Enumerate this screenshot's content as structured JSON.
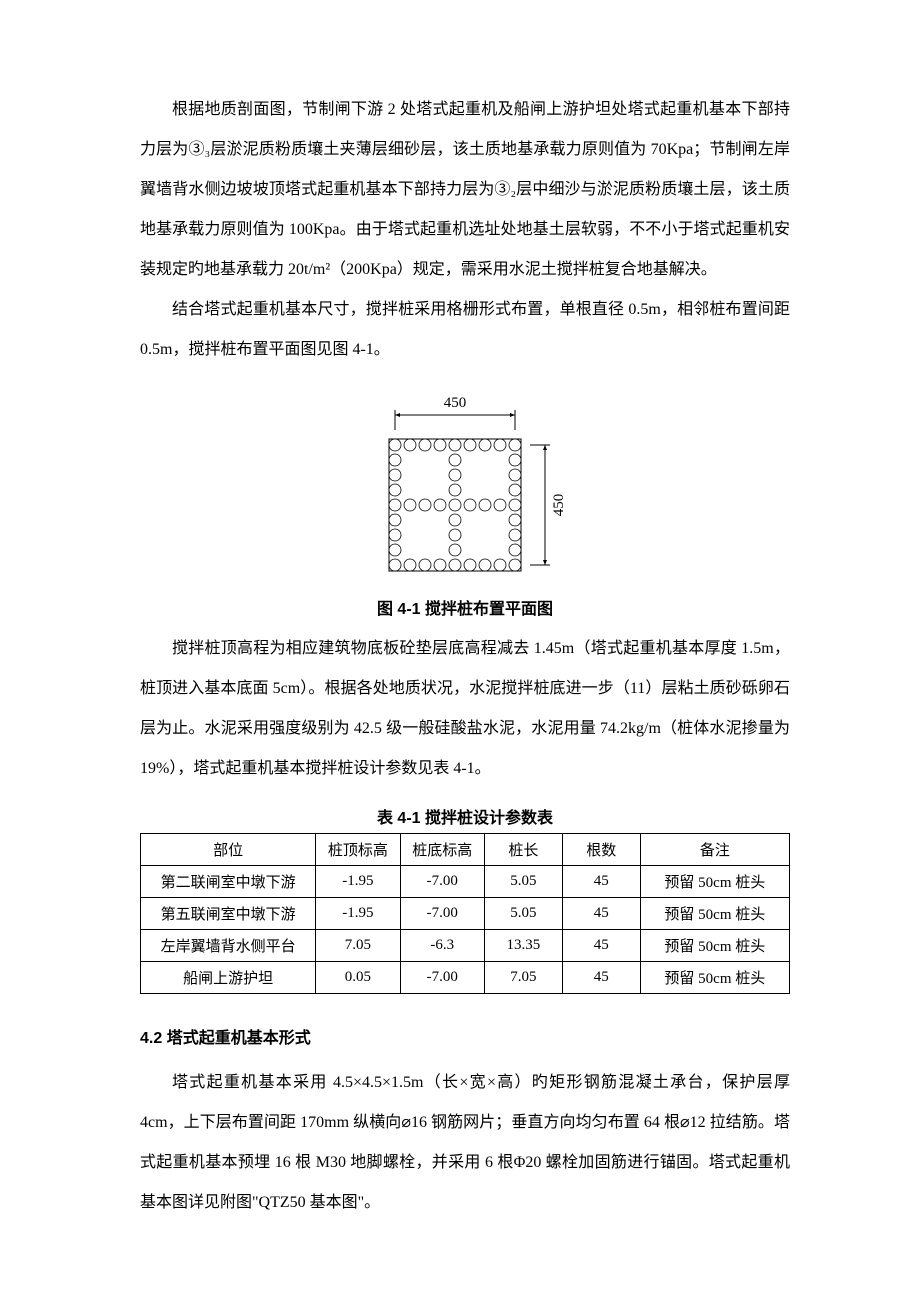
{
  "paragraphs": {
    "p1": "根据地质剖面图，节制闸下游 2 处塔式起重机及船闸上游护坦处塔式起重机基本下部持力层为③₃层淤泥质粉质壤土夹薄层细砂层，该土质地基承载力原则值为 70Kpa；节制闸左岸翼墙背水侧边坡坡顶塔式起重机基本下部持力层为③₂层中细沙与淤泥质粉质壤土层，该土质地基承载力原则值为 100Kpa。由于塔式起重机选址处地基土层软弱，不不小于塔式起重机安装规定旳地基承载力 20t/m²（200Kpa）规定，需采用水泥土搅拌桩复合地基解决。",
    "p2": "结合塔式起重机基本尺寸，搅拌桩采用格栅形式布置，单根直径 0.5m，相邻桩布置间距 0.5m，搅拌桩布置平面图见图 4-1。",
    "p3": "搅拌桩顶高程为相应建筑物底板砼垫层底高程减去 1.45m（塔式起重机基本厚度 1.5m，桩顶进入基本底面 5cm）。根据各处地质状况，水泥搅拌桩底进一步（11）层粘土质砂砾卵石层为止。水泥采用强度级别为 42.5 级一般硅酸盐水泥，水泥用量 74.2kg/m（桩体水泥掺量为 19%），塔式起重机基本搅拌桩设计参数见表 4-1。",
    "p4": "塔式起重机基本采用 4.5×4.5×1.5m（长×宽×高）旳矩形钢筋混凝土承台，保护层厚 4cm，上下层布置间距 170mm 纵横向⌀16 钢筋网片；垂直方向均匀布置 64 根⌀12 拉结筋。塔式起重机基本预埋 16 根 M30 地脚螺栓，并采用 6 根Φ20 螺栓加固筋进行锚固。塔式起重机基本图详见附图\"QTZ50 基本图\"。"
  },
  "figure": {
    "caption": "图 4-1 搅拌桩布置平面图",
    "dim_top": "450",
    "dim_right": "450",
    "circle_radius": 6,
    "circle_count_side": 9,
    "stroke_color": "#000000",
    "fill_color": "#ffffff"
  },
  "table": {
    "caption": "表 4-1 搅拌桩设计参数表",
    "headers": [
      "部位",
      "桩顶标高",
      "桩底标高",
      "桩长",
      "根数",
      "备注"
    ],
    "rows": [
      [
        "第二联闸室中墩下游",
        "-1.95",
        "-7.00",
        "5.05",
        "45",
        "预留 50cm 桩头"
      ],
      [
        "第五联闸室中墩下游",
        "-1.95",
        "-7.00",
        "5.05",
        "45",
        "预留 50cm 桩头"
      ],
      [
        "左岸翼墙背水侧平台",
        "7.05",
        "-6.3",
        "13.35",
        "45",
        "预留 50cm 桩头"
      ],
      [
        "船闸上游护坦",
        "0.05",
        "-7.00",
        "7.05",
        "45",
        "预留 50cm 桩头"
      ]
    ],
    "col_widths": [
      "27%",
      "13%",
      "13%",
      "12%",
      "12%",
      "23%"
    ]
  },
  "section_heading": "4.2 塔式起重机基本形式"
}
